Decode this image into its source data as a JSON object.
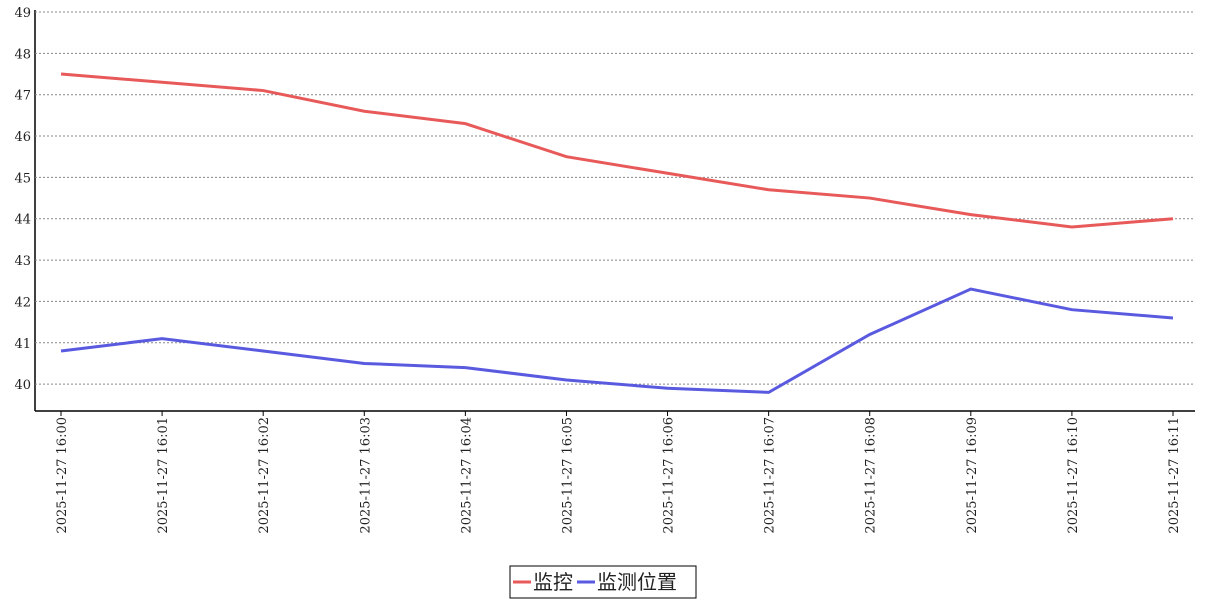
{
  "chart_data": {
    "type": "line",
    "x": [
      "2025-11-27 16:00",
      "2025-11-27 16:01",
      "2025-11-27 16:02",
      "2025-11-27 16:03",
      "2025-11-27 16:04",
      "2025-11-27 16:05",
      "2025-11-27 16:06",
      "2025-11-27 16:07",
      "2025-11-27 16:08",
      "2025-11-27 16:09",
      "2025-11-27 16:10",
      "2025-11-27 16:11"
    ],
    "series": [
      {
        "name": "监控",
        "color": "#e85a5a",
        "values": [
          47.5,
          47.3,
          47.1,
          46.6,
          46.3,
          45.5,
          45.1,
          44.7,
          44.5,
          44.1,
          43.8,
          44.0
        ]
      },
      {
        "name": "监测位置",
        "color": "#5a5ae0",
        "values": [
          40.8,
          41.1,
          40.8,
          40.5,
          40.4,
          40.1,
          39.9,
          39.8,
          41.2,
          42.3,
          41.8,
          41.6
        ]
      }
    ],
    "ylim": [
      39.35,
      49
    ],
    "yticks": [
      40,
      41,
      42,
      43,
      44,
      45,
      46,
      47,
      48,
      49
    ],
    "grid": true,
    "legend": "bottom"
  }
}
